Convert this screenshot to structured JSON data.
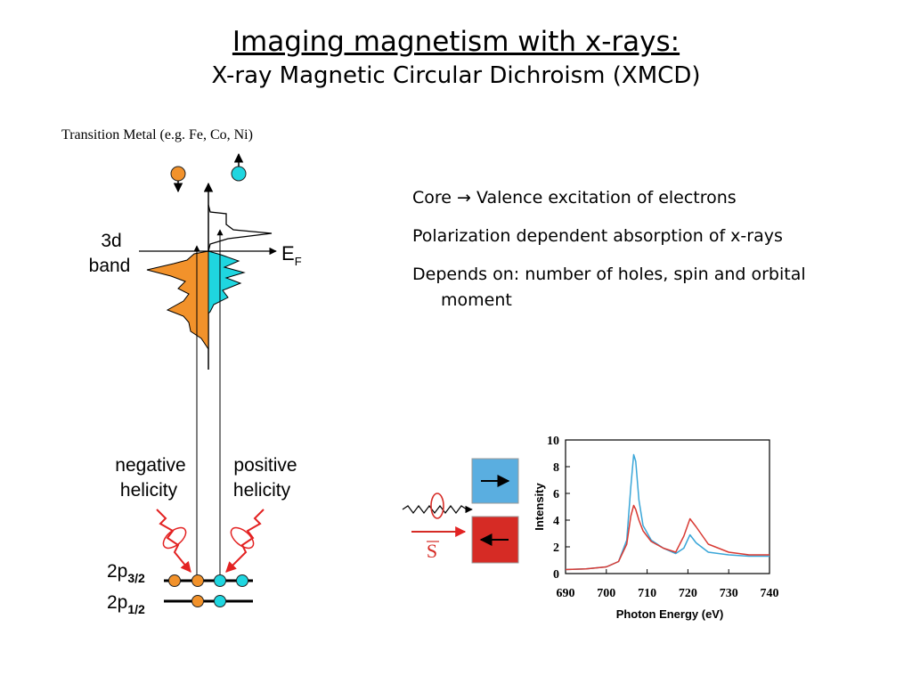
{
  "slide": {
    "title": "Imaging magnetism with x-rays:",
    "subtitle": "X-ray Magnetic Circular Dichroism (XMCD)"
  },
  "diagram": {
    "caption": "Transition Metal (e.g. Fe, Co, Ni)",
    "band_label_line1": "3d",
    "band_label_line2": "band",
    "fermi_label": "E",
    "fermi_sub": "F",
    "neg_line1": "negative",
    "neg_line2": "helicity",
    "pos_line1": "positive",
    "pos_line2": "helicity",
    "level1_main": "2p",
    "level1_sub": "3/2",
    "level2_main": "2p",
    "level2_sub": "1/2",
    "spin_vector": "S",
    "colors": {
      "spin_down": "#f2922b",
      "spin_up": "#1fd6e0",
      "red": "#d62b25",
      "blue": "#5aaee0"
    }
  },
  "bullets": [
    "Core → Valence excitation of electrons",
    "Polarization dependent absorption of x-rays",
    "Depends on: number of holes, spin and orbital moment"
  ],
  "chart_data": {
    "type": "line",
    "xlabel": "Photon Energy (eV)",
    "ylabel": "Intensity",
    "xlim": [
      690,
      740
    ],
    "ylim": [
      0,
      10
    ],
    "xticks": [
      690,
      700,
      710,
      720,
      730,
      740
    ],
    "yticks": [
      0,
      2,
      4,
      6,
      8,
      10
    ],
    "series": [
      {
        "color": "#3aa6d8",
        "x": [
          690,
          695,
          700,
          703,
          705,
          706,
          706.7,
          707.2,
          708,
          709,
          711,
          714,
          717,
          719,
          720.5,
          722,
          725,
          730,
          735,
          740
        ],
        "y": [
          0.3,
          0.35,
          0.5,
          0.9,
          2.5,
          6.5,
          8.9,
          8.4,
          5.5,
          3.6,
          2.5,
          1.9,
          1.5,
          1.9,
          2.9,
          2.3,
          1.6,
          1.4,
          1.3,
          1.3
        ]
      },
      {
        "color": "#d83a33",
        "x": [
          690,
          695,
          700,
          703,
          705,
          706,
          706.7,
          707.2,
          708,
          709,
          711,
          714,
          717,
          719,
          720.5,
          722,
          725,
          730,
          735,
          740
        ],
        "y": [
          0.3,
          0.35,
          0.5,
          0.9,
          2.2,
          4.3,
          5.1,
          4.8,
          4.0,
          3.2,
          2.4,
          1.9,
          1.6,
          2.8,
          4.1,
          3.5,
          2.2,
          1.6,
          1.4,
          1.4
        ]
      }
    ]
  }
}
